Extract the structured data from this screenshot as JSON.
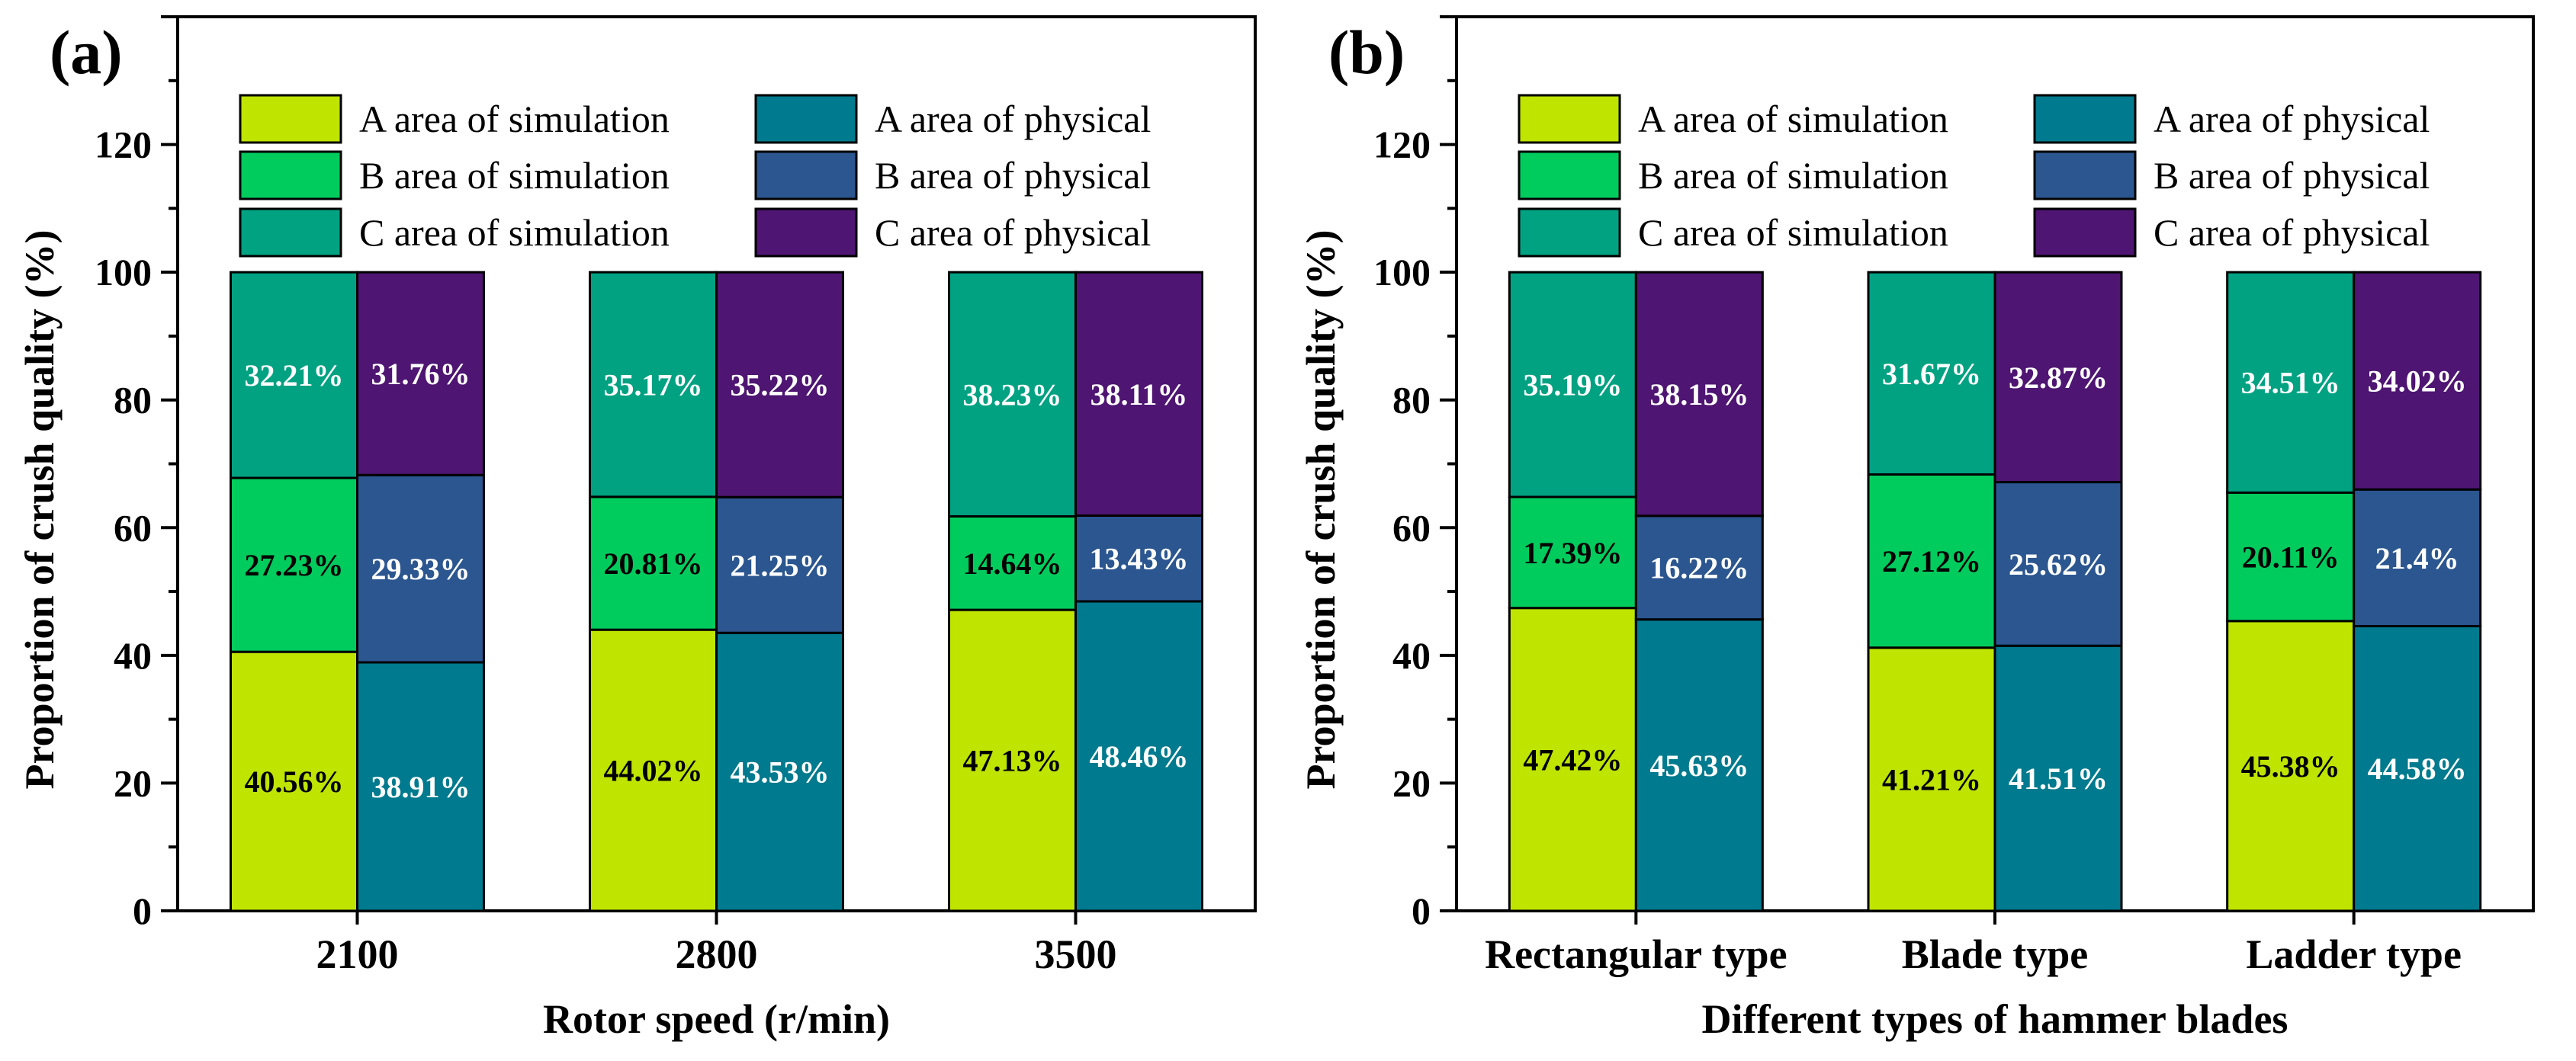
{
  "chart_data": [
    {
      "type": "bar",
      "subtype": "stacked-grouped",
      "panel_label": "(a)",
      "categories": [
        "2100",
        "2800",
        "3500"
      ],
      "xlabel": "Rotor speed (r/min)",
      "ylabel": "Proportion of crush quality (%)",
      "ylim": [
        0,
        140
      ],
      "yticks": [
        "0",
        "20",
        "40",
        "60",
        "80",
        "100",
        "120"
      ],
      "legend": {
        "placement": "top",
        "entries": [
          "A area of simulation",
          "A area of physical",
          "B area of simulation",
          "B area of physical",
          "C area of simulation",
          "C area of physical"
        ]
      },
      "series": [
        {
          "name": "A area of simulation",
          "group": "simulation",
          "values": [
            40.56,
            44.02,
            47.13
          ],
          "labels": [
            "40.56%",
            "44.02%",
            "47.13%"
          ],
          "color": "#bee400"
        },
        {
          "name": "B area of simulation",
          "group": "simulation",
          "values": [
            27.23,
            20.81,
            14.64
          ],
          "labels": [
            "27.23%",
            "20.81%",
            "14.64%"
          ],
          "color": "#00cc5e"
        },
        {
          "name": "C area of simulation",
          "group": "simulation",
          "values": [
            32.21,
            35.17,
            38.23
          ],
          "labels": [
            "32.21%",
            "35.17%",
            "38.23%"
          ],
          "color": "#00a282"
        },
        {
          "name": "A area of physical",
          "group": "physical",
          "values": [
            38.91,
            43.53,
            48.46
          ],
          "labels": [
            "38.91%",
            "43.53%",
            "48.46%"
          ],
          "color": "#007a8e"
        },
        {
          "name": "B area of physical",
          "group": "physical",
          "values": [
            29.33,
            21.25,
            13.43
          ],
          "labels": [
            "29.33%",
            "21.25%",
            "13.43%"
          ],
          "color": "#2b5690"
        },
        {
          "name": "C area of physical",
          "group": "physical",
          "values": [
            31.76,
            35.22,
            38.11
          ],
          "labels": [
            "31.76%",
            "35.22%",
            "38.11%"
          ],
          "color": "#4e1572"
        }
      ]
    },
    {
      "type": "bar",
      "subtype": "stacked-grouped",
      "panel_label": "(b)",
      "categories": [
        "Rectangular type",
        "Blade type",
        "Ladder type"
      ],
      "xlabel": "Different types of hammer blades",
      "ylabel": "Proportion of crush quality (%)",
      "ylim": [
        0,
        140
      ],
      "yticks": [
        "0",
        "20",
        "40",
        "60",
        "80",
        "100",
        "120"
      ],
      "legend": {
        "placement": "top",
        "entries": [
          "A area of simulation",
          "A area of physical",
          "B area of simulation",
          "B area of physical",
          "C area of simulation",
          "C area of physical"
        ]
      },
      "series": [
        {
          "name": "A area of simulation",
          "group": "simulation",
          "values": [
            47.42,
            41.21,
            45.38
          ],
          "labels": [
            "47.42%",
            "41.21%",
            "45.38%"
          ],
          "color": "#bee400"
        },
        {
          "name": "B area of simulation",
          "group": "simulation",
          "values": [
            17.39,
            27.12,
            20.11
          ],
          "labels": [
            "17.39%",
            "27.12%",
            "20.11%"
          ],
          "color": "#00cc5e"
        },
        {
          "name": "C area of simulation",
          "group": "simulation",
          "values": [
            35.19,
            31.67,
            34.51
          ],
          "labels": [
            "35.19%",
            "31.67%",
            "34.51%"
          ],
          "color": "#00a282"
        },
        {
          "name": "A area of physical",
          "group": "physical",
          "values": [
            45.63,
            41.51,
            44.58
          ],
          "labels": [
            "45.63%",
            "41.51%",
            "44.58%"
          ],
          "color": "#007a8e"
        },
        {
          "name": "B area of physical",
          "group": "physical",
          "values": [
            16.22,
            25.62,
            21.4
          ],
          "labels": [
            "16.22%",
            "25.62%",
            "21.4%"
          ],
          "color": "#2b5690"
        },
        {
          "name": "C area of physical",
          "group": "physical",
          "values": [
            38.15,
            32.87,
            34.02
          ],
          "labels": [
            "38.15%",
            "32.87%",
            "34.02%"
          ],
          "color": "#4e1572"
        }
      ]
    }
  ]
}
